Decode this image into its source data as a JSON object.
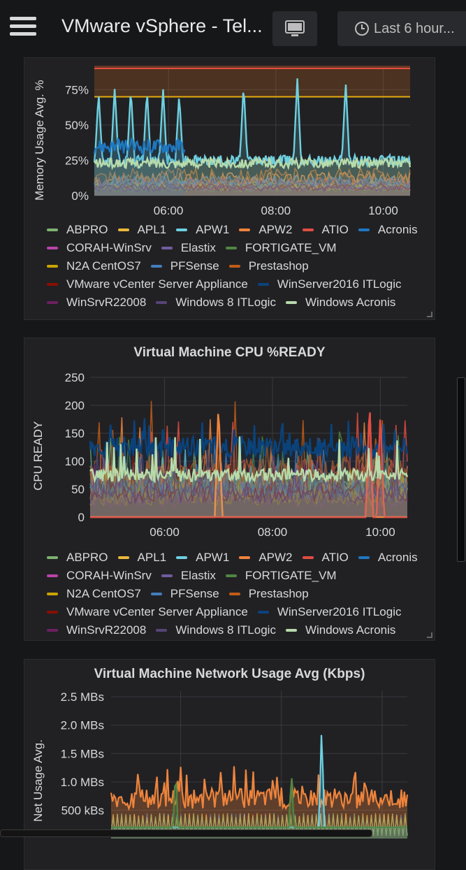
{
  "topbar": {
    "title": "VMware vSphere - Tel...",
    "time_range": "Last 6 hour...",
    "menu_icon": "hamburger-icon",
    "tv_icon": "monitor-icon",
    "clock_icon": "clock-icon"
  },
  "legend": [
    [
      {
        "name": "ABPRO",
        "color": "#7eb26d"
      },
      {
        "name": "APL1",
        "color": "#eab839"
      },
      {
        "name": "APW1",
        "color": "#6ed0e0"
      },
      {
        "name": "APW2",
        "color": "#ef843c"
      },
      {
        "name": "ATIO",
        "color": "#e24d42"
      },
      {
        "name": "Acronis",
        "color": "#1f78c1"
      }
    ],
    [
      {
        "name": "CORAH-WinSrv",
        "color": "#ba43a9"
      },
      {
        "name": "Elastix",
        "color": "#705da0"
      },
      {
        "name": "FORTIGATE_VM",
        "color": "#508642"
      }
    ],
    [
      {
        "name": "N2A CentOS7",
        "color": "#cca300"
      },
      {
        "name": "PFSense",
        "color": "#447ebc"
      },
      {
        "name": "Prestashop",
        "color": "#c15c17"
      }
    ],
    [
      {
        "name": "VMware vCenter Server Appliance",
        "color": "#890f02"
      },
      {
        "name": "WinServer2016 ITLogic",
        "color": "#0a437c"
      }
    ],
    [
      {
        "name": "WinSrvR22008",
        "color": "#6d1f62"
      },
      {
        "name": "Windows 8 ITLogic",
        "color": "#584477"
      },
      {
        "name": "Windows Acronis",
        "color": "#b7dbab"
      }
    ]
  ],
  "chart_data": [
    {
      "type": "area",
      "title": "",
      "ylabel": "Memory Usage Avg. %",
      "yticks": [
        "0%",
        "25%",
        "50%",
        "75%"
      ],
      "xticks": [
        "06:00",
        "08:00",
        "10:00"
      ],
      "ylim": [
        0,
        100
      ],
      "thresholds": [
        {
          "value": 70,
          "color": "#e5ac0e"
        },
        {
          "value": 90,
          "color": "#e24d42"
        }
      ],
      "series": [
        {
          "name": "APW1",
          "peaks": [
            [
              4.7,
              73
            ],
            [
              5.0,
              77
            ],
            [
              5.3,
              76
            ],
            [
              5.6,
              75
            ],
            [
              5.9,
              76
            ],
            [
              6.2,
              72
            ],
            [
              7.4,
              79
            ],
            [
              8.4,
              83
            ],
            [
              9.3,
              81
            ]
          ],
          "baseline": 25
        },
        {
          "name": "Acronis",
          "baseline": 35,
          "range": [
            4.6,
            6.3
          ]
        },
        {
          "name": "Windows Acronis",
          "baseline": 23
        }
      ]
    },
    {
      "type": "area",
      "title": "Virtual Machine CPU %READY",
      "ylabel": "CPU READY",
      "yticks": [
        "0",
        "50",
        "100",
        "150",
        "200",
        "250"
      ],
      "xticks": [
        "06:00",
        "08:00",
        "10:00"
      ],
      "ylim": [
        0,
        250
      ],
      "series": [
        {
          "name": "WinServer2016 ITLogic",
          "baseline": 125,
          "max": 180
        },
        {
          "name": "APW2",
          "peaks": [
            [
              7.0,
              205
            ],
            [
              9.8,
              205
            ]
          ]
        },
        {
          "name": "ATIO",
          "peaks": [
            [
              9.8,
              208
            ],
            [
              10.0,
              185
            ]
          ]
        },
        {
          "name": "Windows Acronis",
          "baseline": 75,
          "max": 145
        }
      ]
    },
    {
      "type": "area",
      "title": "Virtual Machine Network Usage Avg (Kbps)",
      "ylabel": "Net Usage Avg.",
      "yticks": [
        "500 kBs",
        "1.0 MBs",
        "1.5 MBs",
        "2.0 MBs",
        "2.5 MBs"
      ],
      "xticks": [
        "06:00",
        "08:00",
        "10:00"
      ],
      "series": [
        {
          "name": "APW2",
          "baseline": 0.7,
          "max": 1.3
        },
        {
          "name": "APW1",
          "peaks": [
            [
              8.8,
              2.0
            ]
          ]
        },
        {
          "name": "FORTIGATE_VM",
          "peaks": [
            [
              5.9,
              1.25
            ],
            [
              8.2,
              1.2
            ]
          ]
        }
      ]
    }
  ],
  "panel2": {
    "title": "Virtual Machine CPU %READY",
    "ylabel": "CPU READY"
  },
  "panel1": {
    "ylabel": "Memory Usage Avg. %"
  },
  "panel3": {
    "title": "Virtual Machine Network Usage Avg (Kbps)",
    "ylabel": "Net Usage Avg."
  }
}
